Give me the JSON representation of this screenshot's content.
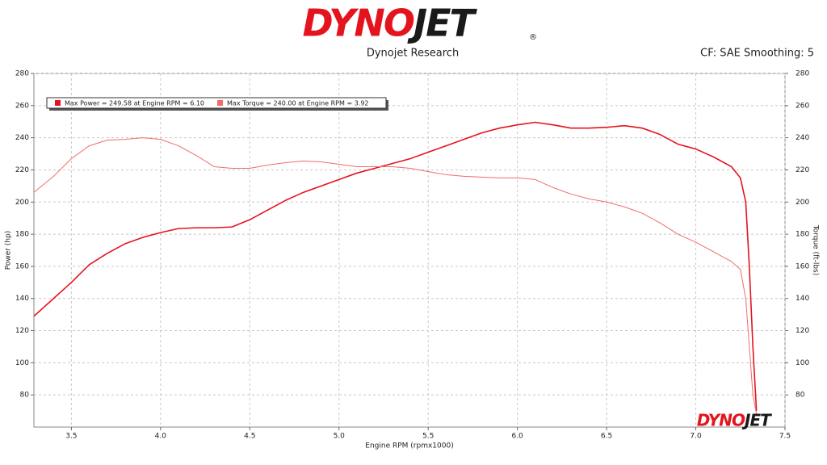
{
  "chart_data": {
    "type": "line",
    "logo_red": "DYNO",
    "logo_dark": "JET",
    "registered": "®",
    "title": "Dynojet Research",
    "subtitle": "CF: SAE Smoothing: 5",
    "xlabel": "Engine RPM (rpmx1000)",
    "ylabel": "Power (hp)",
    "y2label": "Torque (ft-lbs)",
    "xlim": [
      3.29,
      7.5
    ],
    "xticks": [
      3.5,
      {
        "value": 4,
        "label": "4.0"
      },
      4.5,
      {
        "value": 5,
        "label": "5.0"
      },
      5.5,
      {
        "value": 6,
        "label": "6.0"
      },
      6.5,
      {
        "value": 7,
        "label": "7.0"
      },
      7.5
    ],
    "ylim": [
      60,
      280
    ],
    "yticks": [
      80,
      100,
      120,
      140,
      160,
      180,
      200,
      220,
      240,
      260,
      280
    ],
    "y2lim": [
      60,
      280
    ],
    "y2ticks": [
      80,
      100,
      120,
      140,
      160,
      180,
      200,
      220,
      240,
      260,
      280
    ],
    "grid": true,
    "legend": "upper left",
    "x": [
      3.29,
      3.4,
      3.5,
      3.6,
      3.7,
      3.8,
      3.9,
      4.0,
      4.1,
      4.2,
      4.3,
      4.4,
      4.5,
      4.6,
      4.7,
      4.8,
      4.9,
      5.0,
      5.1,
      5.2,
      5.3,
      5.4,
      5.5,
      5.6,
      5.7,
      5.8,
      5.9,
      6.0,
      6.1,
      6.2,
      6.3,
      6.4,
      6.5,
      6.6,
      6.7,
      6.8,
      6.9,
      7.0,
      7.1,
      7.2,
      7.25,
      7.28,
      7.3,
      7.32,
      7.34
    ],
    "series": [
      {
        "name": "Max Power = 249.58 at Engine RPM = 6.10",
        "color": "#e4141e",
        "width": 1.6,
        "values": [
          129,
          140,
          150,
          161,
          168,
          174,
          178,
          181,
          183.5,
          184,
          184,
          184.5,
          189,
          195,
          201,
          206,
          210,
          214,
          218,
          221,
          224,
          227,
          231,
          235,
          239,
          243,
          246,
          248,
          249.6,
          248,
          246,
          246,
          246.5,
          247.5,
          246,
          242,
          236,
          233,
          228,
          222,
          215,
          200,
          160,
          110,
          70
        ]
      },
      {
        "name": "Max Torque = 240.00 at Engine RPM = 3.92",
        "color": "#f26a6a",
        "width": 1,
        "axis": "y2",
        "values": [
          206,
          216,
          227,
          235,
          238.5,
          239,
          240,
          239,
          235,
          229,
          222,
          221,
          221,
          223,
          224.5,
          225.5,
          225,
          223.5,
          222,
          222,
          222,
          221,
          219,
          217,
          216,
          215.5,
          215,
          215,
          214,
          209,
          205,
          202,
          200,
          197,
          193,
          187,
          180,
          175,
          169,
          163,
          158,
          140,
          110,
          80,
          68
        ]
      }
    ]
  }
}
